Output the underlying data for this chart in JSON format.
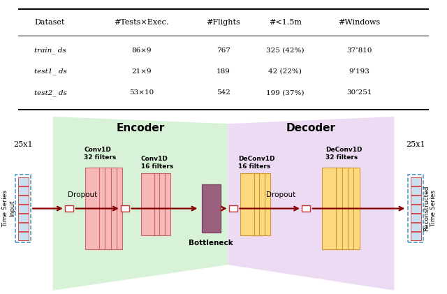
{
  "table": {
    "headers": [
      "Dataset",
      "#Tests×Exec.",
      "#Flights",
      "#<1.5m",
      "#Windows"
    ],
    "rows": [
      [
        "train_ ds",
        "86×9",
        "767",
        "325 (42%)",
        "37’810"
      ],
      [
        "test1_ ds",
        "21×9",
        "189",
        "42 (22%)",
        "9’193"
      ],
      [
        "test2_ ds",
        "53×10",
        "542",
        "199 (37%)",
        "30’251"
      ]
    ]
  },
  "encoder_color": "#cceecc",
  "decoder_color": "#e8d0f0",
  "conv1_color": "#f7b8b8",
  "conv1_edge": "#cc6666",
  "conv2_color": "#f7b8b8",
  "conv2_edge": "#cc6666",
  "deconv1_color": "#ffd980",
  "deconv1_edge": "#cc9933",
  "deconv2_color": "#ffd980",
  "deconv2_edge": "#cc9933",
  "bottleneck_color": "#9b6080",
  "bottleneck_edge": "#7a4060",
  "input_fill": "#c8dff0",
  "input_edge": "#4090c0",
  "sq_fill": "#ffffff",
  "sq_edge": "#cc3333",
  "arrow_color": "#8b0000",
  "encoder_label": "Encoder",
  "decoder_label": "Decoder",
  "input_label": "25x1",
  "output_label": "25x1",
  "ts_label": "Time Series\nInput",
  "recon_label": "Reconstructed\nTime Series",
  "bottleneck_label": "Bottleneck",
  "conv1_label": "Conv1D\n32 filters",
  "conv2_label": "Conv1D\n16 filters",
  "deconv1_label": "DeConv1D\n16 filters",
  "deconv2_label": "DeConv1D\n32 filters",
  "dropout_label": "Dropout"
}
